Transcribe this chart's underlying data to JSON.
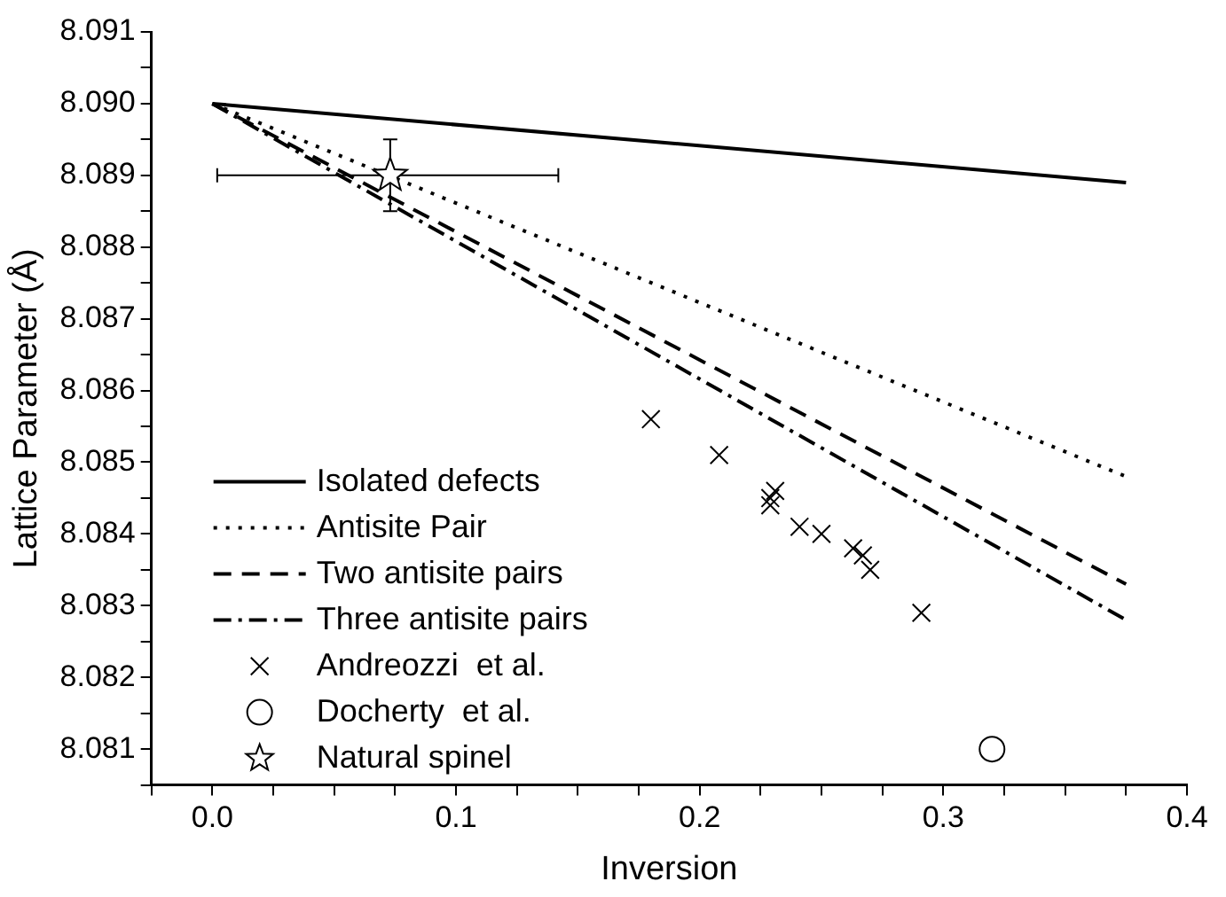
{
  "chart_data": {
    "type": "line",
    "xlabel": "Inversion",
    "ylabel": "Lattice Parameter (Å)",
    "xlim": [
      -0.025,
      0.4
    ],
    "xticks": [
      {
        "value": -0.025,
        "label": null
      },
      {
        "value": 0,
        "label": "0.0"
      },
      {
        "value": 0.025,
        "label": null
      },
      {
        "value": 0.05,
        "label": null
      },
      {
        "value": 0.075,
        "label": null
      },
      0.1,
      {
        "value": 0.125,
        "label": null
      },
      {
        "value": 0.15,
        "label": null
      },
      {
        "value": 0.175,
        "label": null
      },
      0.2,
      {
        "value": 0.225,
        "label": null
      },
      {
        "value": 0.25,
        "label": null
      },
      {
        "value": 0.275,
        "label": null
      },
      0.3,
      {
        "value": 0.325,
        "label": null
      },
      {
        "value": 0.35,
        "label": null
      },
      {
        "value": 0.375,
        "label": null
      },
      0.4
    ],
    "ylim": [
      8.0805,
      8.091
    ],
    "yticks": [
      {
        "value": 8.0805,
        "label": null
      },
      8.081,
      {
        "value": 8.0815,
        "label": null
      },
      8.082,
      {
        "value": 8.0825,
        "label": null
      },
      8.083,
      {
        "value": 8.0835,
        "label": null
      },
      8.084,
      {
        "value": 8.0845,
        "label": null
      },
      8.085,
      {
        "value": 8.0855,
        "label": null
      },
      8.086,
      {
        "value": 8.0865,
        "label": null
      },
      8.087,
      {
        "value": 8.0875,
        "label": null
      },
      8.088,
      {
        "value": 8.0885,
        "label": null
      },
      8.089,
      {
        "value": 8.0895,
        "label": null
      },
      {
        "value": 8.09,
        "label": "8.090"
      },
      {
        "value": 8.0905,
        "label": null
      },
      8.091
    ],
    "grid": false,
    "legend": "bottom left",
    "series": [
      {
        "name": "Isolated defects",
        "type": "line",
        "line_style": "solid",
        "marker": "none",
        "color": "#000000",
        "x": [
          0,
          0.375
        ],
        "values": [
          8.09,
          8.0889
        ]
      },
      {
        "name": "Antisite Pair",
        "type": "line",
        "line_style": "dotted",
        "marker": "none",
        "color": "#000000",
        "x": [
          0,
          0.375
        ],
        "values": [
          8.09,
          8.0848
        ]
      },
      {
        "name": "Two antisite pairs",
        "type": "line",
        "line_style": "dashed",
        "marker": "none",
        "color": "#000000",
        "x": [
          0,
          0.375
        ],
        "values": [
          8.09,
          8.0833
        ]
      },
      {
        "name": "Three antisite pairs",
        "type": "line",
        "line_style": "dashdot",
        "marker": "none",
        "color": "#000000",
        "x": [
          0,
          0.375
        ],
        "values": [
          8.09,
          8.0828
        ]
      },
      {
        "name": "Andreozzi  et al.",
        "type": "scatter",
        "marker": "cross",
        "color": "#000000",
        "x": [
          0.18,
          0.208,
          0.231,
          0.229,
          0.229,
          0.241,
          0.25,
          0.263,
          0.267,
          0.27,
          0.291
        ],
        "values": [
          8.0856,
          8.0851,
          8.0846,
          8.0845,
          8.0844,
          8.0841,
          8.084,
          8.0838,
          8.0837,
          8.0835,
          8.0829
        ]
      },
      {
        "name": "Docherty  et al.",
        "type": "scatter",
        "marker": "circle",
        "color": "#000000",
        "x": [
          0.32
        ],
        "values": [
          8.081
        ]
      },
      {
        "name": "Natural spinel",
        "type": "scatter",
        "marker": "star",
        "color": "#000000",
        "x": [
          0.073
        ],
        "values": [
          8.089
        ],
        "errors": [
          0.0005
        ],
        "xerrors": [
          [
            0.002,
            0.142
          ]
        ]
      }
    ]
  }
}
